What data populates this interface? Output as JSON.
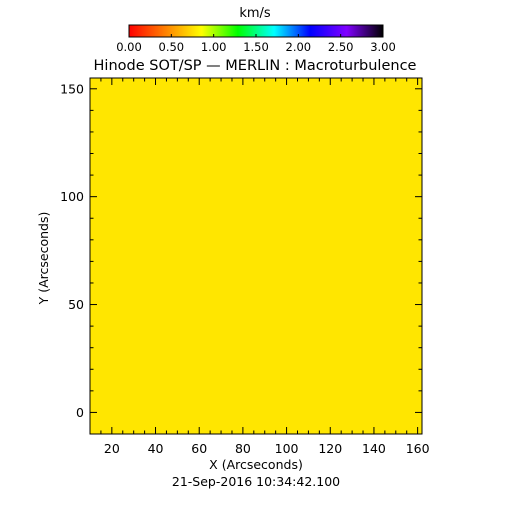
{
  "chart_data": {
    "type": "heatmap",
    "title": "Hinode SOT/SP — MERLIN : Macroturbulence",
    "xlabel": "X (Arcseconds)",
    "ylabel": "Y (Arcseconds)",
    "timestamp": "21-Sep-2016 10:34:42.100",
    "xlim": [
      10,
      162
    ],
    "ylim": [
      -10,
      155
    ],
    "x_ticks": [
      20,
      40,
      60,
      80,
      100,
      120,
      140,
      160
    ],
    "y_ticks": [
      0,
      50,
      100,
      150
    ],
    "x_tick_labels": [
      "20",
      "40",
      "60",
      "80",
      "100",
      "120",
      "140",
      "160"
    ],
    "y_tick_labels": [
      "0",
      "50",
      "100",
      "150"
    ],
    "field_value": 1.0,
    "field_color": "#ffe600",
    "colorbar": {
      "unit": "km/s",
      "min": 0.0,
      "max": 3.0,
      "tick_values": [
        0.0,
        0.5,
        1.0,
        1.5,
        2.0,
        2.5,
        3.0
      ],
      "tick_labels": [
        "0.00",
        "0.50",
        "1.00",
        "1.50",
        "2.00",
        "2.50",
        "3.00"
      ],
      "colors": [
        "#ff0000",
        "#ff8000",
        "#ffff00",
        "#00ff00",
        "#00ffff",
        "#0000ff",
        "#8000ff",
        "#000000"
      ]
    },
    "grid": false
  }
}
